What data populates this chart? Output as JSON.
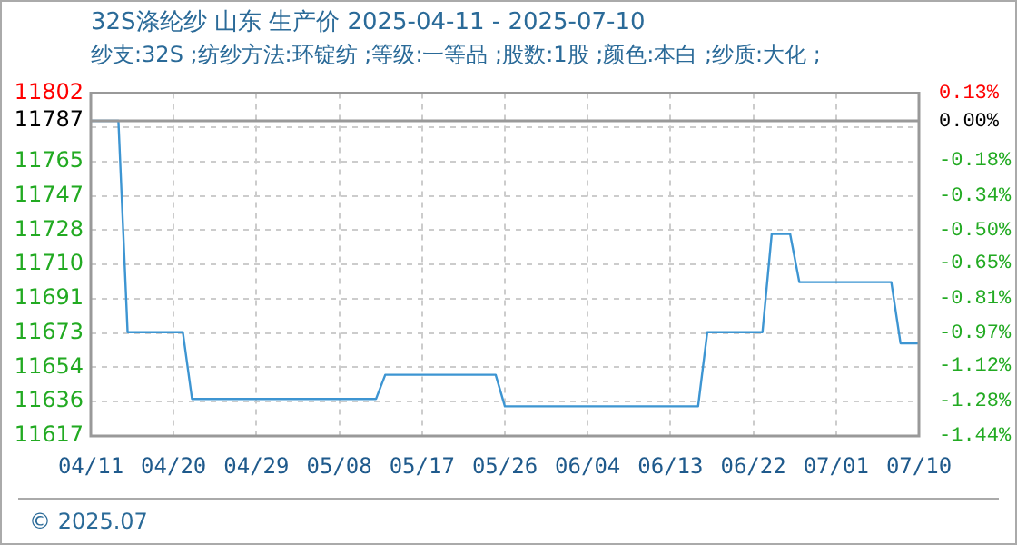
{
  "chart_data": {
    "type": "line",
    "title": "32S涤纶纱 山东 生产价 2025-04-11 - 2025-07-10",
    "subtitle": "纱支:32S ;纺纱方法:环锭纺 ;等级:一等品 ;股数:1股 ;颜色:本白 ;纱质:大化 ;",
    "annotations": [
      "© 2025.07"
    ],
    "x": [
      "2025-04-11",
      "2025-04-14",
      "2025-04-15",
      "2025-04-21",
      "2025-04-22",
      "2025-05-12",
      "2025-05-13",
      "2025-05-25",
      "2025-05-26",
      "2025-06-16",
      "2025-06-17",
      "2025-06-23",
      "2025-06-24",
      "2025-06-26",
      "2025-06-27",
      "2025-07-07",
      "2025-07-08",
      "2025-07-10"
    ],
    "series": [
      {
        "color": "#3d95d2",
        "values": [
          11787,
          11787,
          11673,
          11673,
          11637,
          11637,
          11650,
          11650,
          11633,
          11633,
          11673,
          11673,
          11726,
          11726,
          11700,
          11700,
          11667,
          11667
        ]
      }
    ],
    "xlim": [
      "2025-04-11",
      "2025-07-10"
    ],
    "xticks": [
      {
        "value": "2025-04-11",
        "label": "04/11"
      },
      {
        "value": "2025-04-20",
        "label": "04/20"
      },
      {
        "value": "2025-04-29",
        "label": "04/29"
      },
      {
        "value": "2025-05-08",
        "label": "05/08"
      },
      {
        "value": "2025-05-17",
        "label": "05/17"
      },
      {
        "value": "2025-05-26",
        "label": "05/26"
      },
      {
        "value": "2025-06-04",
        "label": "06/04"
      },
      {
        "value": "2025-06-13",
        "label": "06/13"
      },
      {
        "value": "2025-06-22",
        "label": "06/22"
      },
      {
        "value": "2025-07-01",
        "label": "07/01"
      },
      {
        "value": "2025-07-10",
        "label": "07/10"
      }
    ],
    "ylim": [
      11617,
      11802
    ],
    "yticks": [
      11617,
      {
        "value": 11635.5,
        "label": "11636"
      },
      11654,
      {
        "value": 11672.5,
        "label": "11673"
      },
      11691,
      {
        "value": 11709.5,
        "label": "11710"
      },
      11728,
      {
        "value": 11746.5,
        "label": "11747"
      },
      11765,
      {
        "value": 11783.5,
        "label": null
      },
      11787,
      11802
    ],
    "y2lim": [
      -1.442,
      0.127
    ],
    "y2ticks": [
      {
        "value": -1.44,
        "label": "-1.44%"
      },
      {
        "value": -1.28,
        "label": "-1.28%"
      },
      {
        "value": -1.12,
        "label": "-1.12%"
      },
      {
        "value": -0.97,
        "label": "-0.97%"
      },
      {
        "value": -0.81,
        "label": "-0.81%"
      },
      {
        "value": -0.65,
        "label": "-0.65%"
      },
      {
        "value": -0.5,
        "label": "-0.50%"
      },
      {
        "value": -0.34,
        "label": "-0.34%"
      },
      {
        "value": -0.18,
        "label": "-0.18%"
      },
      {
        "value": 0,
        "label": "0.00%"
      },
      {
        "value": 0.127,
        "label": "0.13%"
      }
    ],
    "ref_lines": [
      {
        "axis": "y",
        "value": 11787,
        "color": "#999999"
      }
    ],
    "grid": true,
    "legend": false,
    "marker": "none",
    "line_style": "solid"
  }
}
